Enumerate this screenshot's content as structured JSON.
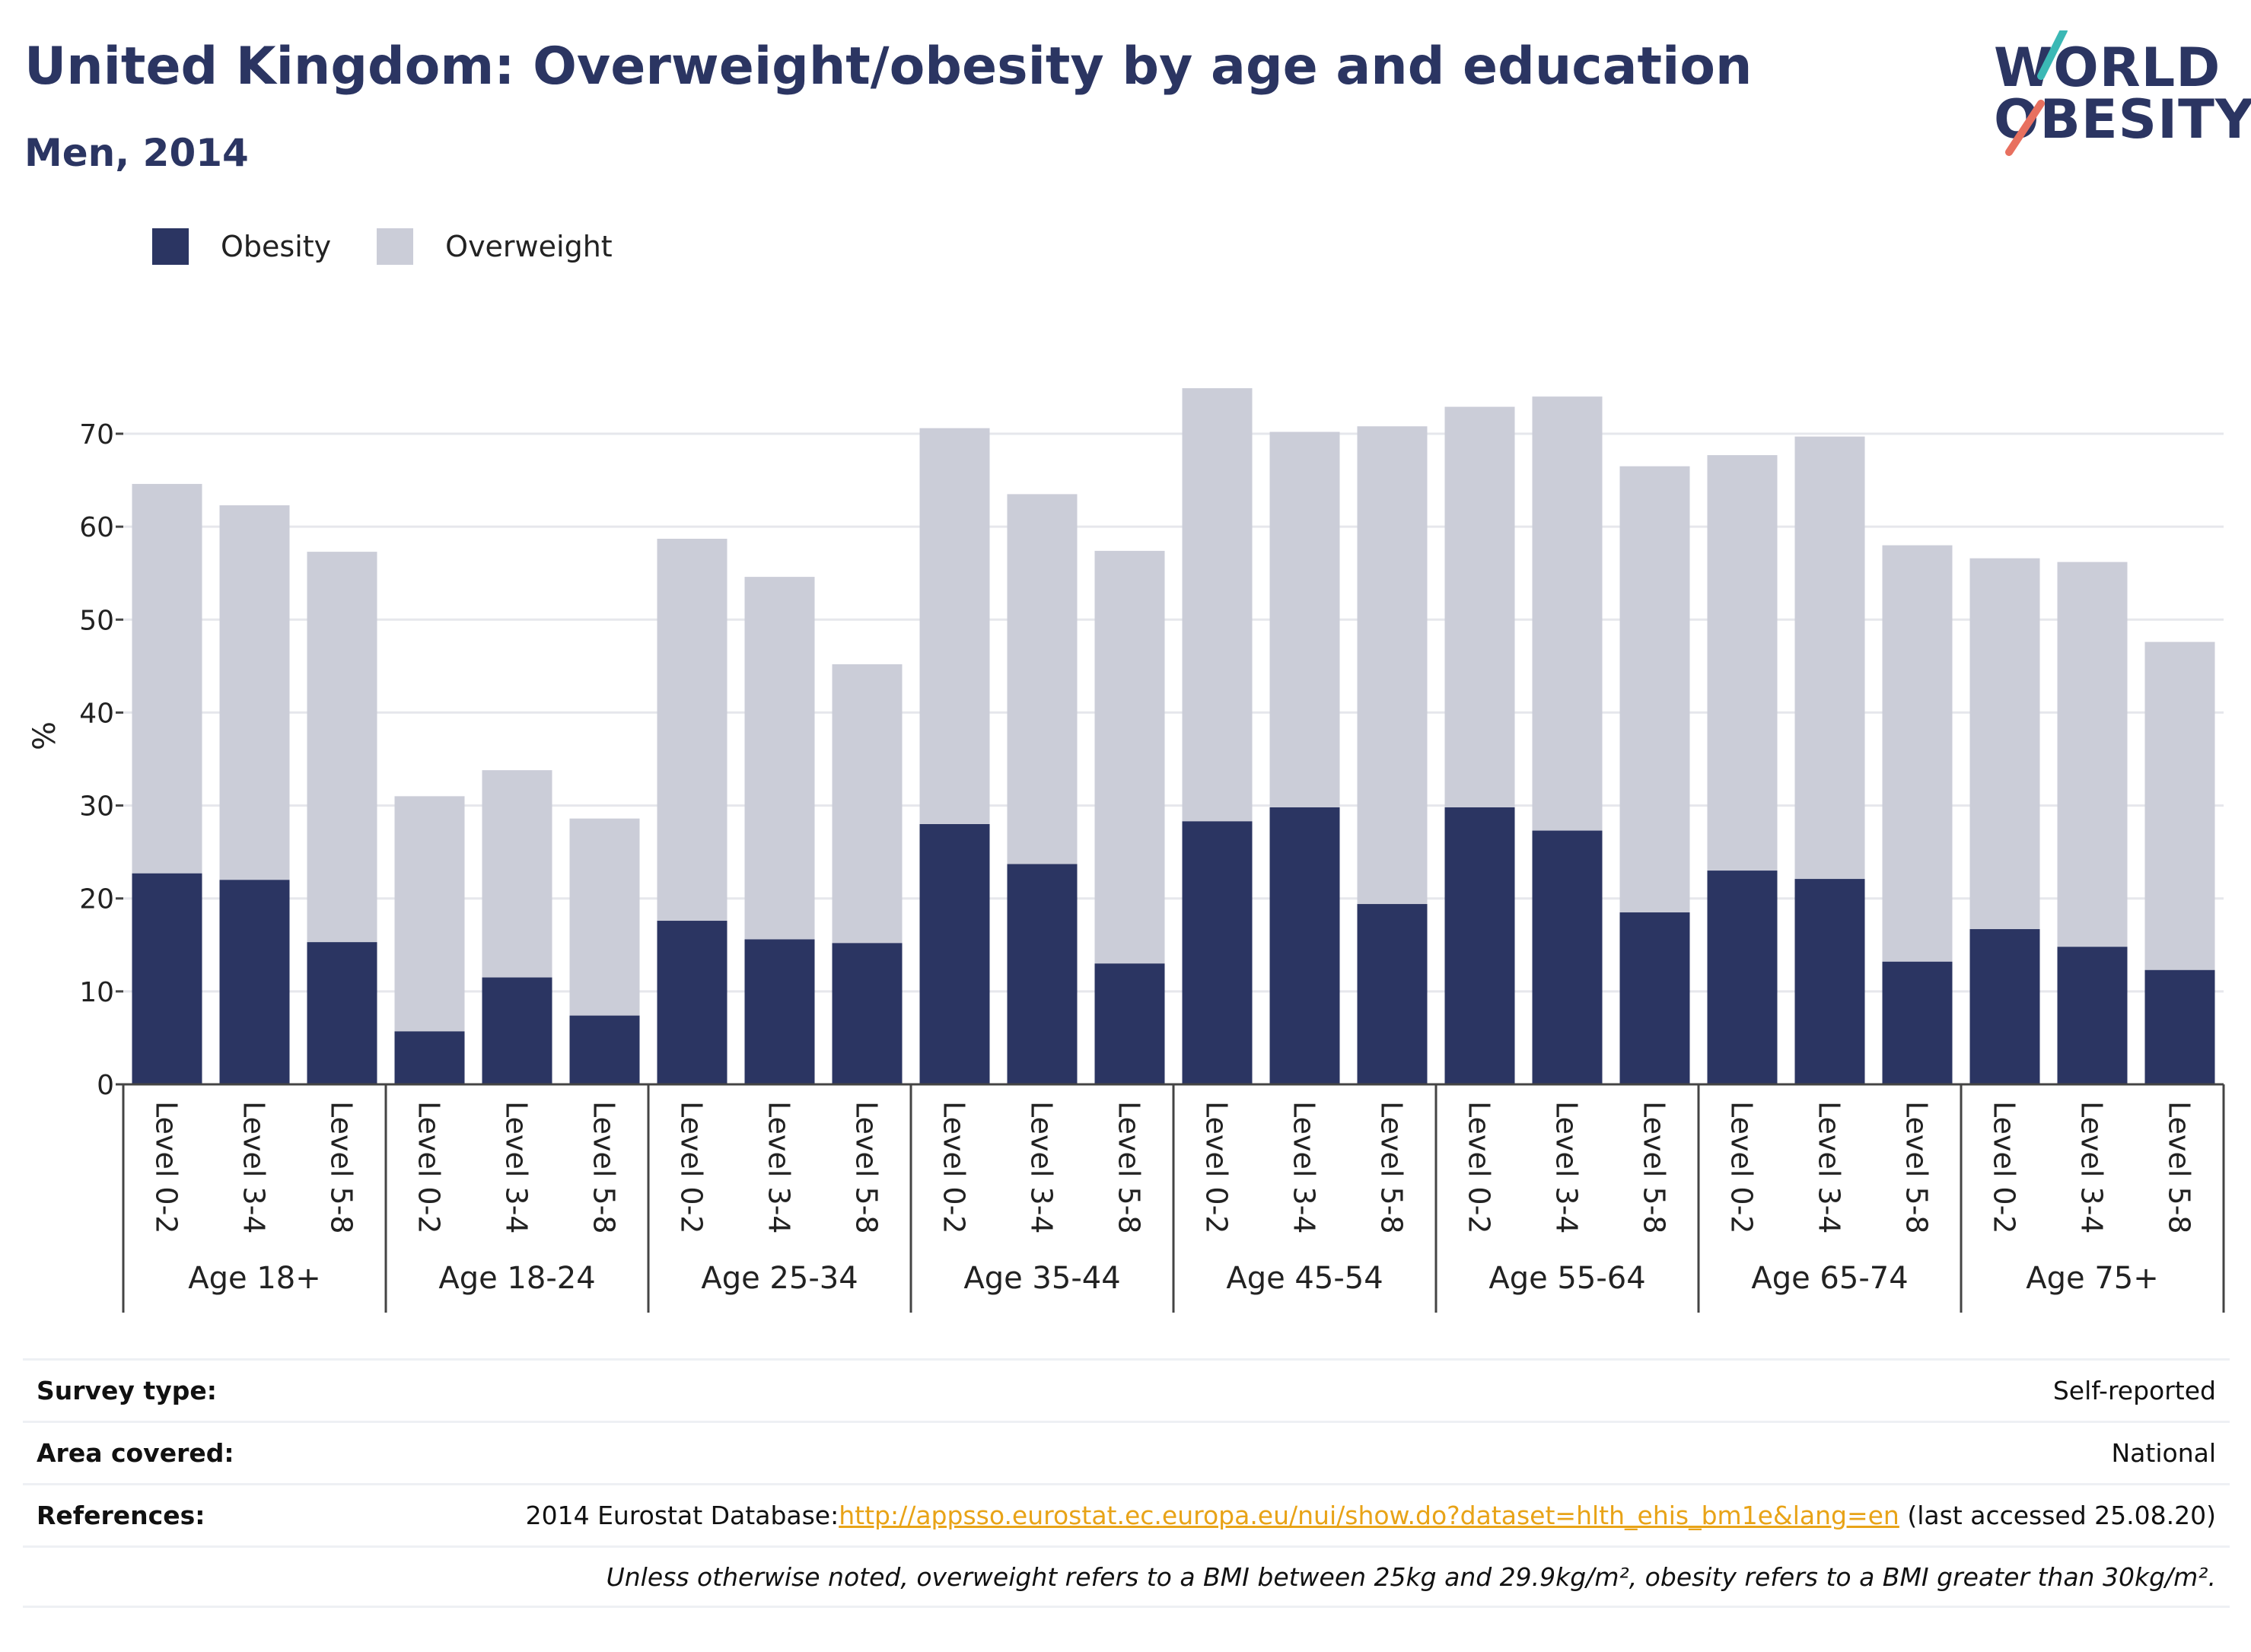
{
  "header": {
    "title": "United Kingdom: Overweight/obesity by age and education",
    "subtitle": "Men, 2014"
  },
  "logo": {
    "line1": "WORLD",
    "line2": "OBESITY",
    "text_color": "#2b3562",
    "accent_teal": "#3bb8b5",
    "accent_coral": "#e8705f"
  },
  "legend": {
    "obesity_label": "Obesity",
    "overweight_label": "Overweight"
  },
  "chart_data": {
    "type": "bar",
    "stacked": true,
    "ylabel": "%",
    "ylim": [
      0,
      75
    ],
    "yticks": [
      0,
      10,
      20,
      30,
      40,
      50,
      60,
      70
    ],
    "grid": true,
    "legend_position": "top-left",
    "groups": [
      "Age 18+",
      "Age 18-24",
      "Age 25-34",
      "Age 35-44",
      "Age 45-54",
      "Age 55-64",
      "Age 65-74",
      "Age 75+"
    ],
    "categories": [
      "Level 0-2",
      "Level 3-4",
      "Level 5-8"
    ],
    "series": [
      {
        "name": "Obesity",
        "color": "#2b3562",
        "values": [
          [
            22.7,
            22.0,
            15.3
          ],
          [
            5.7,
            11.5,
            7.4
          ],
          [
            17.6,
            15.6,
            15.2
          ],
          [
            28.0,
            23.7,
            13.0
          ],
          [
            28.3,
            29.8,
            19.4
          ],
          [
            29.8,
            27.3,
            18.5
          ],
          [
            23.0,
            22.1,
            13.2
          ],
          [
            16.7,
            14.8,
            12.3
          ]
        ]
      },
      {
        "name": "Overweight",
        "color": "#cbcdd8",
        "values": [
          [
            41.9,
            40.3,
            42.0
          ],
          [
            25.3,
            22.3,
            21.2
          ],
          [
            41.1,
            39.0,
            30.0
          ],
          [
            42.6,
            39.8,
            44.4
          ],
          [
            46.6,
            40.4,
            51.4
          ],
          [
            43.1,
            46.7,
            48.0
          ],
          [
            44.7,
            47.6,
            44.8
          ],
          [
            39.9,
            41.4,
            35.3
          ]
        ]
      }
    ]
  },
  "info": {
    "survey_label": "Survey type:",
    "survey_value": "Self-reported",
    "area_label": "Area covered:",
    "area_value": "National",
    "ref_label": "References:",
    "ref_prefix": "2014 Eurostat Database:",
    "ref_link": "http://appsso.eurostat.ec.europa.eu/nui/show.do?dataset=hlth_ehis_bm1e&lang=en",
    "ref_suffix": " (last accessed 25.08.20)",
    "note": "Unless otherwise noted, overweight refers to a BMI between 25kg and 29.9kg/m², obesity refers to a BMI greater than 30kg/m²."
  }
}
